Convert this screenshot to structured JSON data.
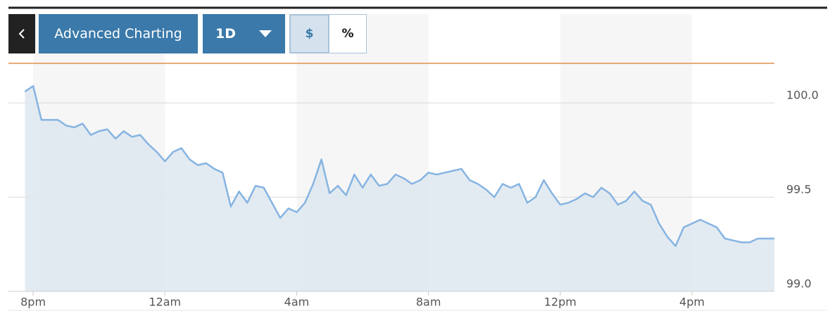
{
  "toolbar": {
    "title": "Advanced Charting",
    "range": "1D",
    "unit_options": [
      "$",
      "%"
    ]
  },
  "chart_data": {
    "type": "area",
    "x": [
      -0.25,
      0,
      0.25,
      0.5,
      0.75,
      1,
      1.25,
      1.5,
      1.75,
      2,
      2.25,
      2.5,
      2.75,
      3,
      3.25,
      3.5,
      3.75,
      4,
      4.25,
      4.5,
      4.75,
      5,
      5.25,
      5.5,
      5.75,
      6,
      6.25,
      6.5,
      6.75,
      7,
      7.25,
      7.5,
      7.75,
      8,
      8.25,
      8.5,
      8.75,
      9,
      9.25,
      9.5,
      9.75,
      10,
      10.25,
      10.5,
      10.75,
      11,
      11.25,
      11.5,
      11.75,
      12,
      12.25,
      12.5,
      12.75,
      13,
      13.25,
      13.5,
      13.75,
      14,
      14.25,
      14.5,
      14.75,
      15,
      15.25,
      15.5,
      15.75,
      16,
      16.25,
      16.5,
      16.75,
      17,
      17.25,
      17.5,
      17.75,
      18,
      18.25,
      18.5,
      18.75,
      19,
      19.25,
      19.5,
      19.75,
      20,
      20.25,
      20.5,
      20.75,
      21,
      21.25,
      21.5,
      21.75,
      22,
      22.25,
      22.5
    ],
    "series": [
      {
        "color": "#86b4e2",
        "area_color": "#dee8f0",
        "values": [
          100.06,
          100.09,
          99.91,
          99.91,
          99.91,
          99.88,
          99.87,
          99.89,
          99.83,
          99.85,
          99.86,
          99.81,
          99.85,
          99.82,
          99.83,
          99.78,
          99.74,
          99.69,
          99.74,
          99.76,
          99.7,
          99.67,
          99.68,
          99.65,
          99.63,
          99.45,
          99.53,
          99.47,
          99.56,
          99.55,
          99.47,
          99.39,
          99.44,
          99.42,
          99.47,
          99.57,
          99.7,
          99.52,
          99.56,
          99.51,
          99.62,
          99.55,
          99.62,
          99.56,
          99.57,
          99.62,
          99.6,
          99.57,
          99.59,
          99.63,
          99.62,
          99.63,
          99.64,
          99.65,
          99.59,
          99.57,
          99.54,
          99.5,
          99.57,
          99.55,
          99.57,
          99.47,
          99.5,
          99.59,
          99.52,
          99.46,
          99.47,
          99.49,
          99.52,
          99.5,
          99.55,
          99.52,
          99.46,
          99.48,
          99.53,
          99.48,
          99.46,
          99.36,
          99.29,
          99.24,
          99.34,
          99.36,
          99.38,
          99.36,
          99.34,
          99.28,
          99.27,
          99.26,
          99.26,
          99.28,
          99.28,
          99.28
        ]
      }
    ],
    "reference_value": 100.21,
    "reference_color": "#e0904a",
    "xlim": [
      -0.75,
      22.5
    ],
    "xticks": [
      {
        "value": 0,
        "label": "8pm"
      },
      {
        "value": 4,
        "label": "12am"
      },
      {
        "value": 8,
        "label": "4am"
      },
      {
        "value": 12,
        "label": "8am"
      },
      {
        "value": 16,
        "label": "12pm"
      },
      {
        "value": 20,
        "label": "4pm"
      }
    ],
    "ylim": [
      99.0,
      100.21
    ],
    "yticks": [
      {
        "value": 99,
        "label": "99.0"
      },
      {
        "value": 99.5,
        "label": "99.5"
      },
      {
        "value": 100,
        "label": "100.0"
      }
    ],
    "grid": true
  }
}
